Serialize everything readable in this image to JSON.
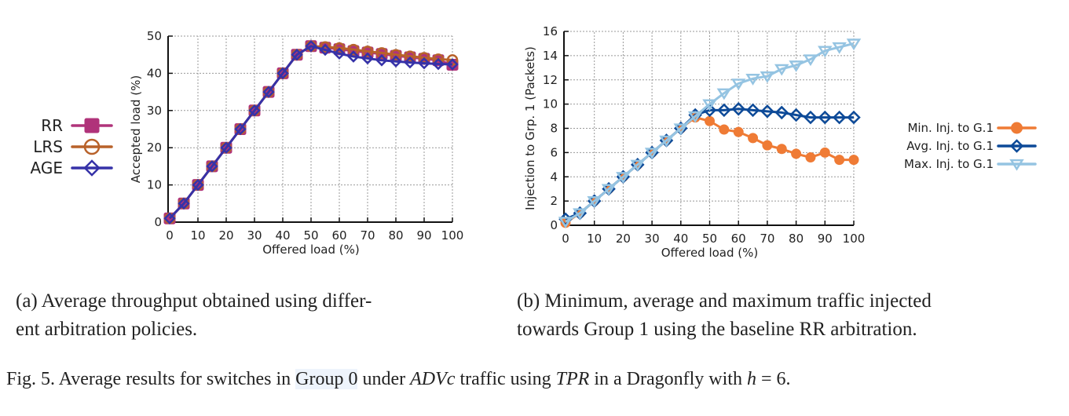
{
  "chart_data": [
    {
      "id": "a",
      "type": "line",
      "title": "",
      "xlabel": "Offered load (%)",
      "ylabel": "Accepted load (%)",
      "xlim": [
        0,
        100
      ],
      "ylim": [
        0,
        50
      ],
      "xticks": [
        0,
        10,
        20,
        30,
        40,
        50,
        60,
        70,
        80,
        90,
        100
      ],
      "yticks": [
        0,
        10,
        20,
        30,
        40,
        50
      ],
      "grid": true,
      "legend_position": "left",
      "x": [
        0,
        5,
        10,
        15,
        20,
        25,
        30,
        35,
        40,
        45,
        50,
        55,
        60,
        65,
        70,
        75,
        80,
        85,
        90,
        95,
        100
      ],
      "series": [
        {
          "name": "RR",
          "color": "#b0337a",
          "marker": "square-filled",
          "values": [
            1,
            5,
            10,
            15,
            20,
            25,
            30,
            35,
            40,
            45,
            47.3,
            46.9,
            46.5,
            46.0,
            45.6,
            45.2,
            44.7,
            44.3,
            43.9,
            43.5,
            42.3
          ]
        },
        {
          "name": "LRS",
          "color": "#b8622a",
          "marker": "circle-open",
          "values": [
            1,
            5,
            10,
            15,
            20,
            25,
            30,
            35,
            40,
            45,
            47.3,
            47.1,
            46.8,
            46.4,
            45.9,
            45.5,
            45.0,
            44.6,
            44.2,
            43.8,
            43.6
          ]
        },
        {
          "name": "AGE",
          "color": "#3632a8",
          "marker": "diamond-open",
          "values": [
            1,
            5,
            10,
            15,
            20,
            25,
            30,
            35,
            40,
            45,
            47.3,
            46.3,
            45.3,
            44.5,
            44.0,
            43.5,
            43.2,
            42.9,
            42.7,
            42.5,
            42.4
          ]
        }
      ]
    },
    {
      "id": "b",
      "type": "line",
      "title": "",
      "xlabel": "Offered load (%)",
      "ylabel": "Injection to Grp. 1 (Packets)",
      "xlim": [
        0,
        100
      ],
      "ylim": [
        0,
        16
      ],
      "xticks": [
        0,
        10,
        20,
        30,
        40,
        50,
        60,
        70,
        80,
        90,
        100
      ],
      "yticks": [
        0,
        2,
        4,
        6,
        8,
        10,
        12,
        14,
        16
      ],
      "grid": true,
      "legend_position": "right",
      "x": [
        0,
        5,
        10,
        15,
        20,
        25,
        30,
        35,
        40,
        45,
        50,
        55,
        60,
        65,
        70,
        75,
        80,
        85,
        90,
        95,
        100
      ],
      "series": [
        {
          "name": "Min. Inj. to G.1",
          "color": "#ef7b35",
          "marker": "circle-filled",
          "values": [
            0.2,
            1,
            2,
            3,
            4,
            5,
            6,
            7,
            8,
            8.9,
            8.6,
            7.9,
            7.7,
            7.2,
            6.6,
            6.3,
            5.9,
            5.6,
            6.0,
            5.4,
            5.4
          ]
        },
        {
          "name": "Avg. Inj. to G.1",
          "color": "#0d4a98",
          "marker": "diamond-open",
          "values": [
            0.5,
            1,
            2,
            3,
            4,
            5,
            6,
            7,
            8,
            9.1,
            9.5,
            9.5,
            9.6,
            9.5,
            9.4,
            9.3,
            9.1,
            8.9,
            8.9,
            8.9,
            8.9
          ]
        },
        {
          "name": "Max. Inj. to G.1",
          "color": "#95c4e2",
          "marker": "triangle-down-open",
          "values": [
            0.3,
            1,
            2,
            3,
            4,
            5,
            6,
            7,
            8,
            9,
            10,
            10.9,
            11.7,
            12.1,
            12.3,
            12.9,
            13.2,
            13.7,
            14.4,
            14.7,
            15.0
          ]
        }
      ]
    }
  ],
  "captions": {
    "a_line1": "(a) Average throughput obtained using differ-",
    "a_line2": "ent arbitration policies.",
    "b_line1": "(b) Minimum, average and maximum traffic injected",
    "b_line2": "towards Group 1 using the baseline RR arbitration."
  },
  "figure_caption": {
    "prefix": "Fig. 5.  Average results for switches in ",
    "link": "Group 0",
    "mid1": " under ",
    "it1": "ADVc",
    "mid2": " traffic using ",
    "it2": "TPR",
    "mid3": " in a Dragonfly with ",
    "it3": "h",
    "suffix": " = 6."
  }
}
